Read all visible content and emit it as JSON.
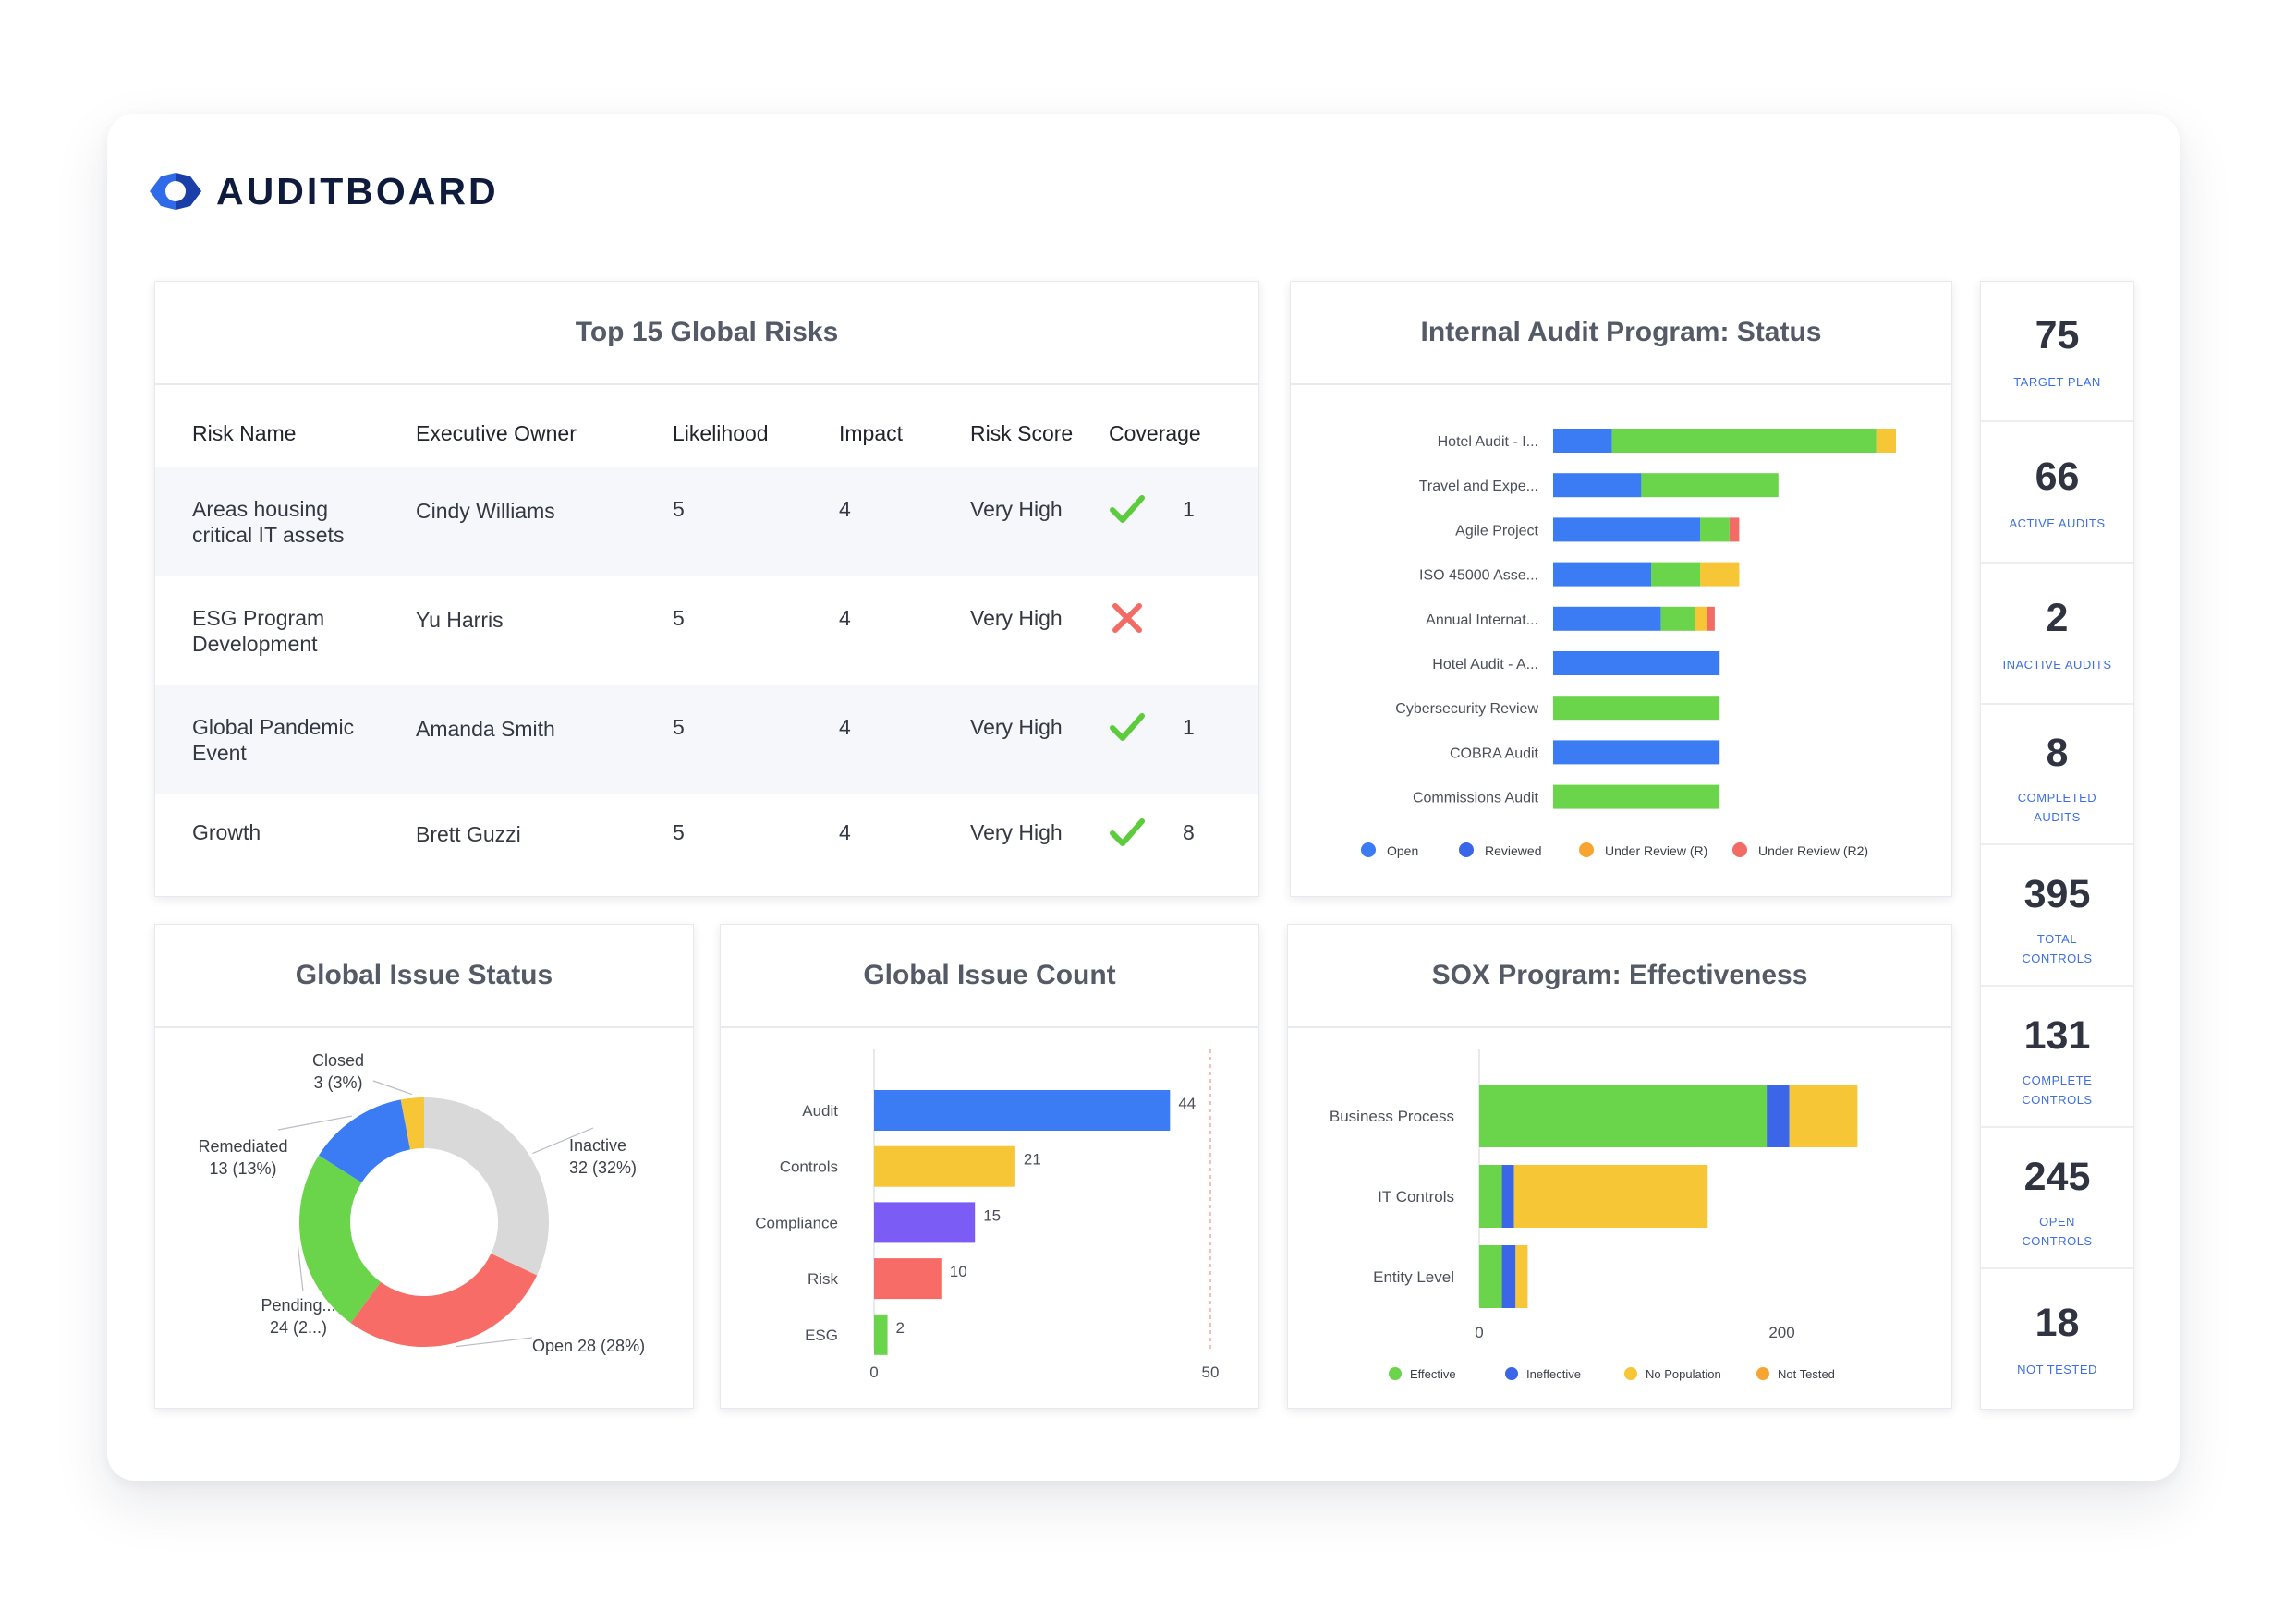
{
  "brand": {
    "name": "AUDITBOARD",
    "logo_colors": [
      "#2f6be8",
      "#1b3fa8"
    ]
  },
  "risks": {
    "title": "Top 15 Global Risks",
    "columns": [
      "Risk Name",
      "Executive Owner",
      "Likelihood",
      "Impact",
      "Risk Score",
      "Coverage"
    ],
    "rows": [
      {
        "risk_name": [
          "Areas housing",
          "critical IT assets"
        ],
        "owner": "Cindy Williams",
        "likelihood": "5",
        "impact": "4",
        "score": "Very High",
        "covered": true,
        "count": "1"
      },
      {
        "risk_name": [
          "ESG Program",
          "Development"
        ],
        "owner": "Yu Harris",
        "likelihood": "5",
        "impact": "4",
        "score": "Very High",
        "covered": false,
        "count": ""
      },
      {
        "risk_name": [
          "Global Pandemic",
          "Event"
        ],
        "owner": "Amanda Smith",
        "likelihood": "5",
        "impact": "4",
        "score": "Very High",
        "covered": true,
        "count": "1"
      },
      {
        "risk_name": [
          "Growth"
        ],
        "owner": "Brett Guzzi",
        "likelihood": "5",
        "impact": "4",
        "score": "Very High",
        "covered": true,
        "count": "8"
      }
    ]
  },
  "status_column": [
    {
      "value": "75",
      "label": [
        "TARGET PLAN"
      ]
    },
    {
      "value": "66",
      "label": [
        "ACTIVE AUDITS"
      ]
    },
    {
      "value": "2",
      "label": [
        "INACTIVE AUDITS"
      ]
    },
    {
      "value": "8",
      "label": [
        "COMPLETED",
        "AUDITS"
      ]
    },
    {
      "value": "395",
      "label": [
        "TOTAL",
        "CONTROLS"
      ]
    },
    {
      "value": "131",
      "label": [
        "COMPLETE",
        "CONTROLS"
      ]
    },
    {
      "value": "245",
      "label": [
        "OPEN",
        "CONTROLS"
      ]
    },
    {
      "value": "18",
      "label": [
        "NOT TESTED"
      ]
    }
  ],
  "panels": {
    "audit_status": "Internal Audit Program: Status",
    "issue_status": "Global Issue Status",
    "issue_count": "Global Issue Count",
    "sox": "SOX Program: Effectiveness"
  },
  "chart_data": [
    {
      "type": "bar",
      "orientation": "horizontal",
      "stacked": true,
      "title": "Internal Audit Program: Status",
      "categories": [
        "Hotel Audit - I...",
        "Travel and Expe...",
        "Agile Project",
        "ISO 45000 Asse...",
        "Annual Internat...",
        "Hotel Audit - A...",
        "Cybersecurity Review",
        "COBRA Audit",
        "Commissions Audit"
      ],
      "series": [
        {
          "name": "Open",
          "color": "#3b7cf5",
          "values": [
            6,
            9,
            15,
            10,
            11,
            17,
            0,
            17,
            0
          ]
        },
        {
          "name": "Reviewed",
          "color": "#6ad44a",
          "values": [
            27,
            14,
            3,
            5,
            3.5,
            0,
            17,
            0,
            17
          ]
        },
        {
          "name": "Under Review (R)",
          "color": "#f7c637",
          "values": [
            2,
            0,
            0,
            4,
            1.2,
            0,
            0,
            0,
            0
          ]
        },
        {
          "name": "Under Review (R2)",
          "color": "#f26b64",
          "values": [
            0,
            0,
            1,
            0,
            0.8,
            0,
            0,
            0,
            0
          ]
        }
      ],
      "legend_colors": [
        "#3b7cf5",
        "#3b66e8",
        "#f7a530",
        "#f26b64"
      ],
      "legend": "bottom"
    },
    {
      "type": "pie",
      "donut": true,
      "title": "Global Issue Status",
      "slices": [
        {
          "label": "Inactive",
          "value": 32,
          "display": [
            "Inactive",
            "32 (32%)"
          ],
          "color": "#d9d9d9"
        },
        {
          "label": "Open",
          "value": 28,
          "display": [
            "Open 28 (28%)"
          ],
          "color": "#f86c67"
        },
        {
          "label": "Pending...",
          "value": 24,
          "display": [
            "Pending...",
            "24 (2...)"
          ],
          "color": "#6ad44a"
        },
        {
          "label": "Remediated",
          "value": 13,
          "display": [
            "Remediated",
            "13 (13%)"
          ],
          "color": "#3b7cf5"
        },
        {
          "label": "Closed",
          "value": 3,
          "display": [
            "Closed",
            "3 (3%)"
          ],
          "color": "#f7c637"
        }
      ]
    },
    {
      "type": "bar",
      "orientation": "horizontal",
      "title": "Global Issue Count",
      "categories": [
        "Audit",
        "Controls",
        "Compliance",
        "Risk",
        "ESG"
      ],
      "values": [
        44,
        21,
        15,
        10,
        2
      ],
      "colors": [
        "#3b7cf5",
        "#f7c637",
        "#7b5cf5",
        "#f86c67",
        "#6ad44a"
      ],
      "xlim": [
        0,
        50
      ],
      "x_ticks": [
        "0",
        "50"
      ]
    },
    {
      "type": "bar",
      "orientation": "horizontal",
      "stacked": true,
      "title": "SOX Program: Effectiveness",
      "categories": [
        "Business Process",
        "IT Controls",
        "Entity Level"
      ],
      "series": [
        {
          "name": "Effective",
          "color": "#6ad44a",
          "values": [
            190,
            15,
            15
          ]
        },
        {
          "name": "Ineffective",
          "color": "#3b66e8",
          "values": [
            15,
            8,
            9
          ]
        },
        {
          "name": "No Population",
          "color": "#f7c637",
          "values": [
            45,
            128,
            8
          ]
        },
        {
          "name": "Not Tested",
          "color": "#f7a530",
          "values": [
            0,
            0,
            0
          ]
        }
      ],
      "xlim": [
        0,
        250
      ],
      "x_ticks": [
        "0",
        "200"
      ],
      "legend": "bottom"
    }
  ]
}
